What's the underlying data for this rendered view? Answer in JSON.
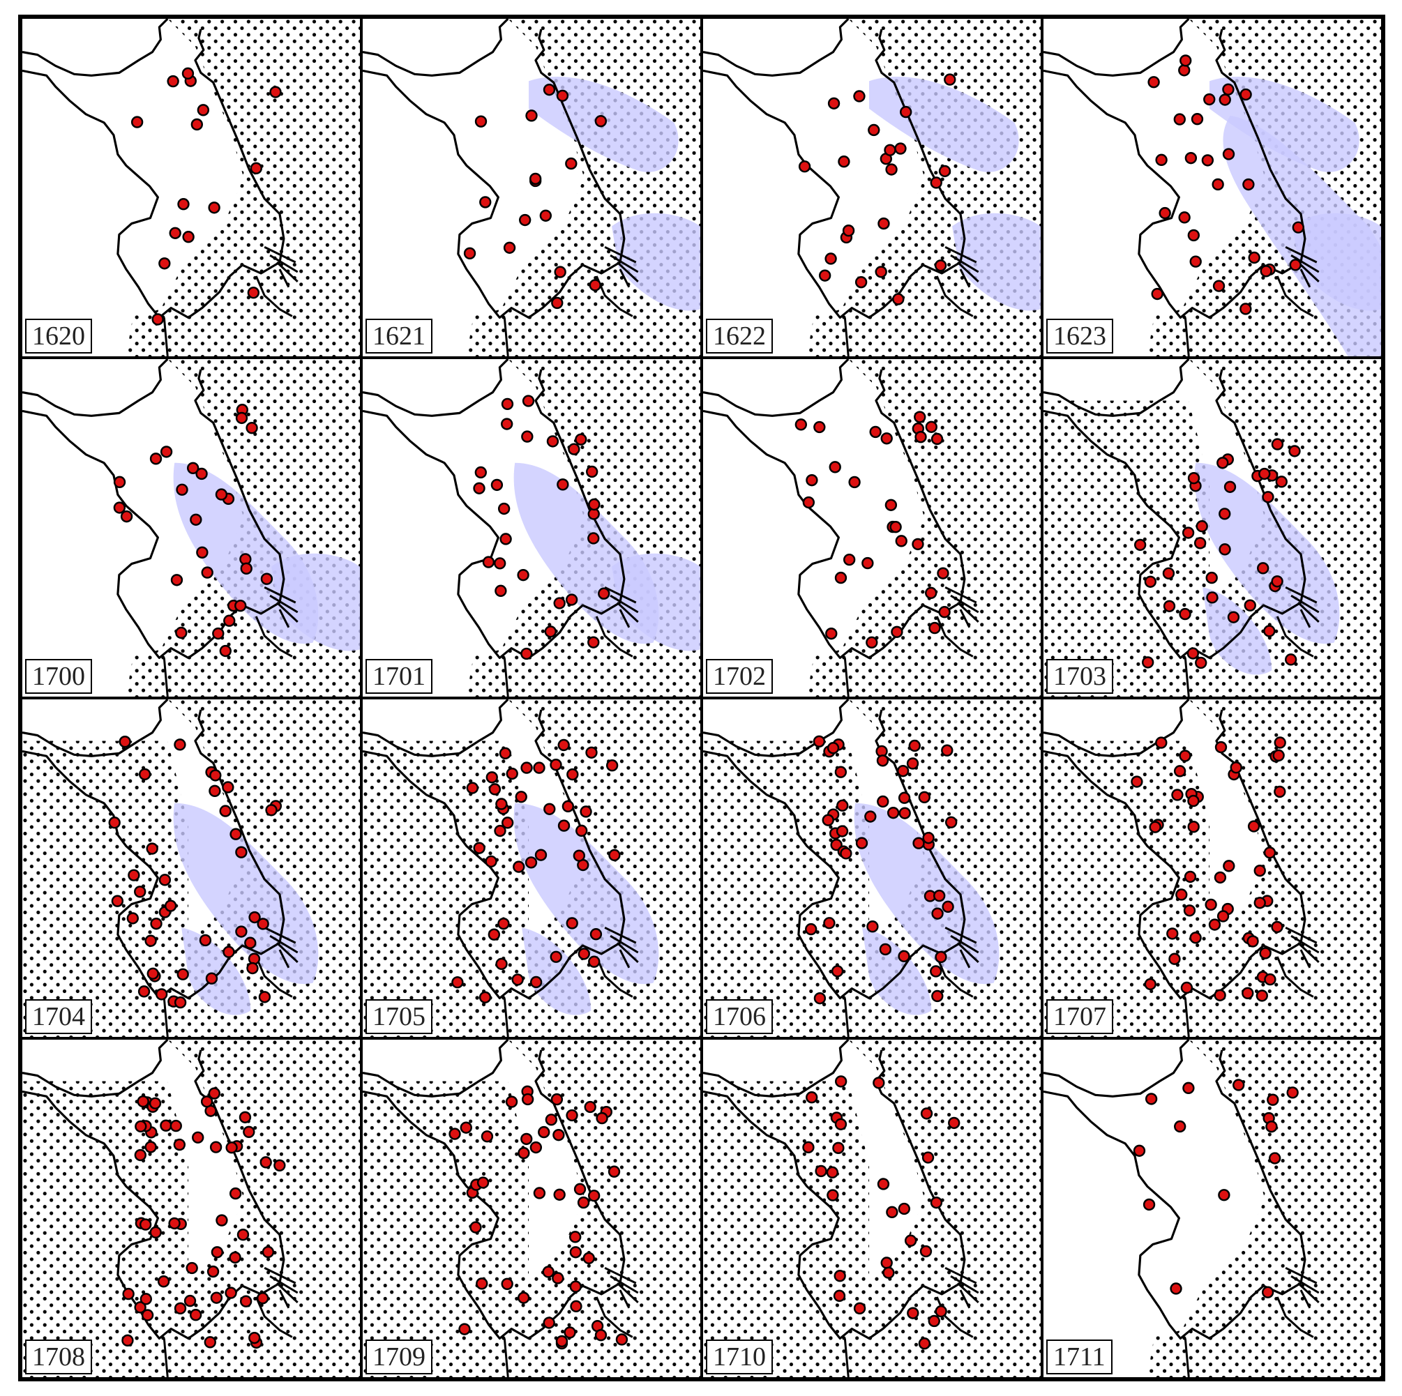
{
  "colors": {
    "hazard_fill": "#c9c9ff",
    "station": "#dd1111",
    "station_outline": "#000000",
    "stipple": "#000000",
    "boundary": "#000000"
  },
  "panels": [
    {
      "year": "1620",
      "coverage": [
        "east"
      ],
      "hazard": []
    },
    {
      "year": "1621",
      "coverage": [
        "east"
      ],
      "hazard": [
        "ne-streak",
        "se-corner"
      ]
    },
    {
      "year": "1622",
      "coverage": [
        "east"
      ],
      "hazard": [
        "ne-streak",
        "se-corner"
      ]
    },
    {
      "year": "1623",
      "coverage": [
        "east"
      ],
      "hazard": [
        "ne-streak",
        "se-corner",
        "east-band"
      ]
    },
    {
      "year": "1700",
      "coverage": [
        "east"
      ],
      "hazard": [
        "central-band",
        "se-corner"
      ]
    },
    {
      "year": "1701",
      "coverage": [
        "east"
      ],
      "hazard": [
        "central-band",
        "se-corner"
      ]
    },
    {
      "year": "1702",
      "coverage": [
        "east"
      ],
      "hazard": []
    },
    {
      "year": "1703",
      "coverage": [
        "east",
        "west"
      ],
      "hazard": [
        "central-band",
        "south"
      ]
    },
    {
      "year": "1704",
      "coverage": [
        "east",
        "west"
      ],
      "hazard": [
        "central-band",
        "south"
      ]
    },
    {
      "year": "1705",
      "coverage": [
        "east",
        "west"
      ],
      "hazard": [
        "central-band",
        "south"
      ]
    },
    {
      "year": "1706",
      "coverage": [
        "east",
        "west"
      ],
      "hazard": [
        "central-band",
        "south"
      ]
    },
    {
      "year": "1707",
      "coverage": [
        "east",
        "west"
      ],
      "hazard": []
    },
    {
      "year": "1708",
      "coverage": [
        "east",
        "west"
      ],
      "hazard": []
    },
    {
      "year": "1709",
      "coverage": [
        "east",
        "west"
      ],
      "hazard": []
    },
    {
      "year": "1710",
      "coverage": [
        "east",
        "west"
      ],
      "hazard": []
    },
    {
      "year": "1711",
      "coverage": [
        "east"
      ],
      "hazard": []
    }
  ]
}
